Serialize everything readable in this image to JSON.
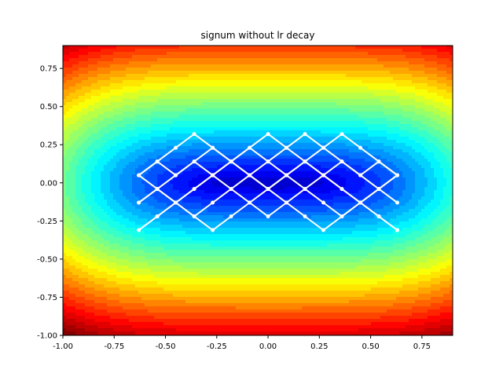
{
  "chart_data": {
    "type": "line",
    "title": "signum without lr decay",
    "xlabel": "",
    "ylabel": "",
    "xlim": [
      -1.0,
      0.9
    ],
    "ylim": [
      -1.0,
      0.9
    ],
    "x_ticks": [
      "-1.00",
      "-0.75",
      "-0.50",
      "-0.25",
      "0.00",
      "0.25",
      "0.50",
      "0.75"
    ],
    "y_ticks": [
      "-1.00",
      "-0.75",
      "-0.50",
      "-0.25",
      "0.00",
      "0.25",
      "0.50",
      "0.75"
    ],
    "x_tick_values": [
      -1.0,
      -0.75,
      -0.5,
      -0.25,
      0.0,
      0.25,
      0.5,
      0.75
    ],
    "y_tick_values": [
      -1.0,
      -0.75,
      -0.5,
      -0.25,
      0.0,
      0.25,
      0.5,
      0.75
    ],
    "background": {
      "type": "contourf",
      "colormap": "jet",
      "surface": "a*x^4 + b*y^2 (bowl shaped, minimum near origin)"
    },
    "grid": false,
    "legend": "none",
    "series": [
      {
        "color": "#ffffff",
        "points": [
          [
            -0.63,
            -0.31
          ],
          [
            -0.54,
            -0.22
          ],
          [
            -0.45,
            -0.13
          ],
          [
            -0.36,
            -0.04
          ],
          [
            -0.27,
            0.05
          ],
          [
            -0.18,
            0.14
          ],
          [
            -0.09,
            0.23
          ],
          [
            0.0,
            0.32
          ],
          [
            0.09,
            0.23
          ],
          [
            0.18,
            0.14
          ],
          [
            0.27,
            0.05
          ],
          [
            0.36,
            -0.04
          ],
          [
            0.45,
            -0.13
          ],
          [
            0.54,
            -0.22
          ],
          [
            0.63,
            -0.31
          ]
        ]
      },
      {
        "color": "#ffffff",
        "points": [
          [
            -0.63,
            -0.13
          ],
          [
            -0.54,
            -0.04
          ],
          [
            -0.45,
            0.05
          ],
          [
            -0.36,
            0.14
          ],
          [
            -0.27,
            0.23
          ],
          [
            -0.18,
            0.14
          ],
          [
            -0.09,
            0.05
          ],
          [
            0.0,
            -0.04
          ],
          [
            0.09,
            -0.13
          ],
          [
            0.18,
            -0.22
          ],
          [
            0.27,
            -0.31
          ],
          [
            0.36,
            -0.22
          ],
          [
            0.45,
            -0.13
          ],
          [
            0.54,
            -0.04
          ],
          [
            0.63,
            0.05
          ]
        ]
      },
      {
        "color": "#ffffff",
        "points": [
          [
            -0.63,
            0.05
          ],
          [
            -0.54,
            0.14
          ],
          [
            -0.45,
            0.23
          ],
          [
            -0.36,
            0.32
          ],
          [
            -0.27,
            0.23
          ],
          [
            -0.18,
            0.14
          ],
          [
            -0.09,
            0.05
          ],
          [
            0.0,
            -0.04
          ],
          [
            0.09,
            0.05
          ],
          [
            0.18,
            0.14
          ],
          [
            0.27,
            0.23
          ],
          [
            0.36,
            0.32
          ],
          [
            0.45,
            0.23
          ],
          [
            0.54,
            0.14
          ],
          [
            0.63,
            0.05
          ]
        ]
      },
      {
        "color": "#ffffff",
        "points": [
          [
            -0.63,
            -0.31
          ],
          [
            -0.54,
            -0.22
          ],
          [
            -0.45,
            -0.13
          ],
          [
            -0.36,
            -0.22
          ],
          [
            -0.27,
            -0.31
          ],
          [
            -0.18,
            -0.22
          ],
          [
            -0.09,
            -0.13
          ],
          [
            0.0,
            -0.22
          ],
          [
            0.09,
            -0.13
          ],
          [
            0.18,
            -0.04
          ],
          [
            0.27,
            0.05
          ],
          [
            0.36,
            0.14
          ],
          [
            0.45,
            0.05
          ],
          [
            0.54,
            -0.04
          ],
          [
            0.63,
            -0.13
          ]
        ]
      },
      {
        "color": "#ffffff",
        "points": [
          [
            -0.63,
            0.05
          ],
          [
            -0.54,
            -0.04
          ],
          [
            -0.45,
            -0.13
          ],
          [
            -0.36,
            -0.22
          ],
          [
            -0.27,
            -0.13
          ],
          [
            -0.18,
            -0.04
          ],
          [
            -0.09,
            0.05
          ],
          [
            0.0,
            0.14
          ],
          [
            0.09,
            0.05
          ],
          [
            0.18,
            -0.04
          ],
          [
            0.27,
            -0.13
          ],
          [
            0.36,
            -0.22
          ],
          [
            0.45,
            -0.13
          ],
          [
            0.54,
            -0.22
          ],
          [
            0.63,
            -0.31
          ]
        ]
      },
      {
        "color": "#ffffff",
        "points": [
          [
            -0.63,
            -0.13
          ],
          [
            -0.54,
            -0.04
          ],
          [
            -0.45,
            -0.13
          ],
          [
            -0.36,
            -0.04
          ],
          [
            -0.27,
            0.05
          ],
          [
            -0.18,
            -0.04
          ],
          [
            -0.09,
            -0.13
          ],
          [
            0.0,
            -0.04
          ],
          [
            0.09,
            0.05
          ],
          [
            0.18,
            0.14
          ],
          [
            0.27,
            0.05
          ],
          [
            0.36,
            -0.04
          ],
          [
            0.45,
            -0.13
          ],
          [
            0.54,
            -0.04
          ],
          [
            0.63,
            0.05
          ]
        ]
      },
      {
        "color": "#ffffff",
        "points": [
          [
            -0.63,
            0.05
          ],
          [
            -0.54,
            0.14
          ],
          [
            -0.45,
            0.05
          ],
          [
            -0.36,
            0.14
          ],
          [
            -0.27,
            0.05
          ],
          [
            -0.18,
            0.14
          ],
          [
            -0.09,
            0.23
          ],
          [
            0.0,
            0.14
          ],
          [
            0.09,
            0.23
          ],
          [
            0.18,
            0.32
          ],
          [
            0.27,
            0.23
          ],
          [
            0.36,
            0.14
          ],
          [
            0.45,
            0.05
          ],
          [
            0.54,
            0.14
          ],
          [
            0.63,
            0.05
          ]
        ]
      }
    ]
  }
}
